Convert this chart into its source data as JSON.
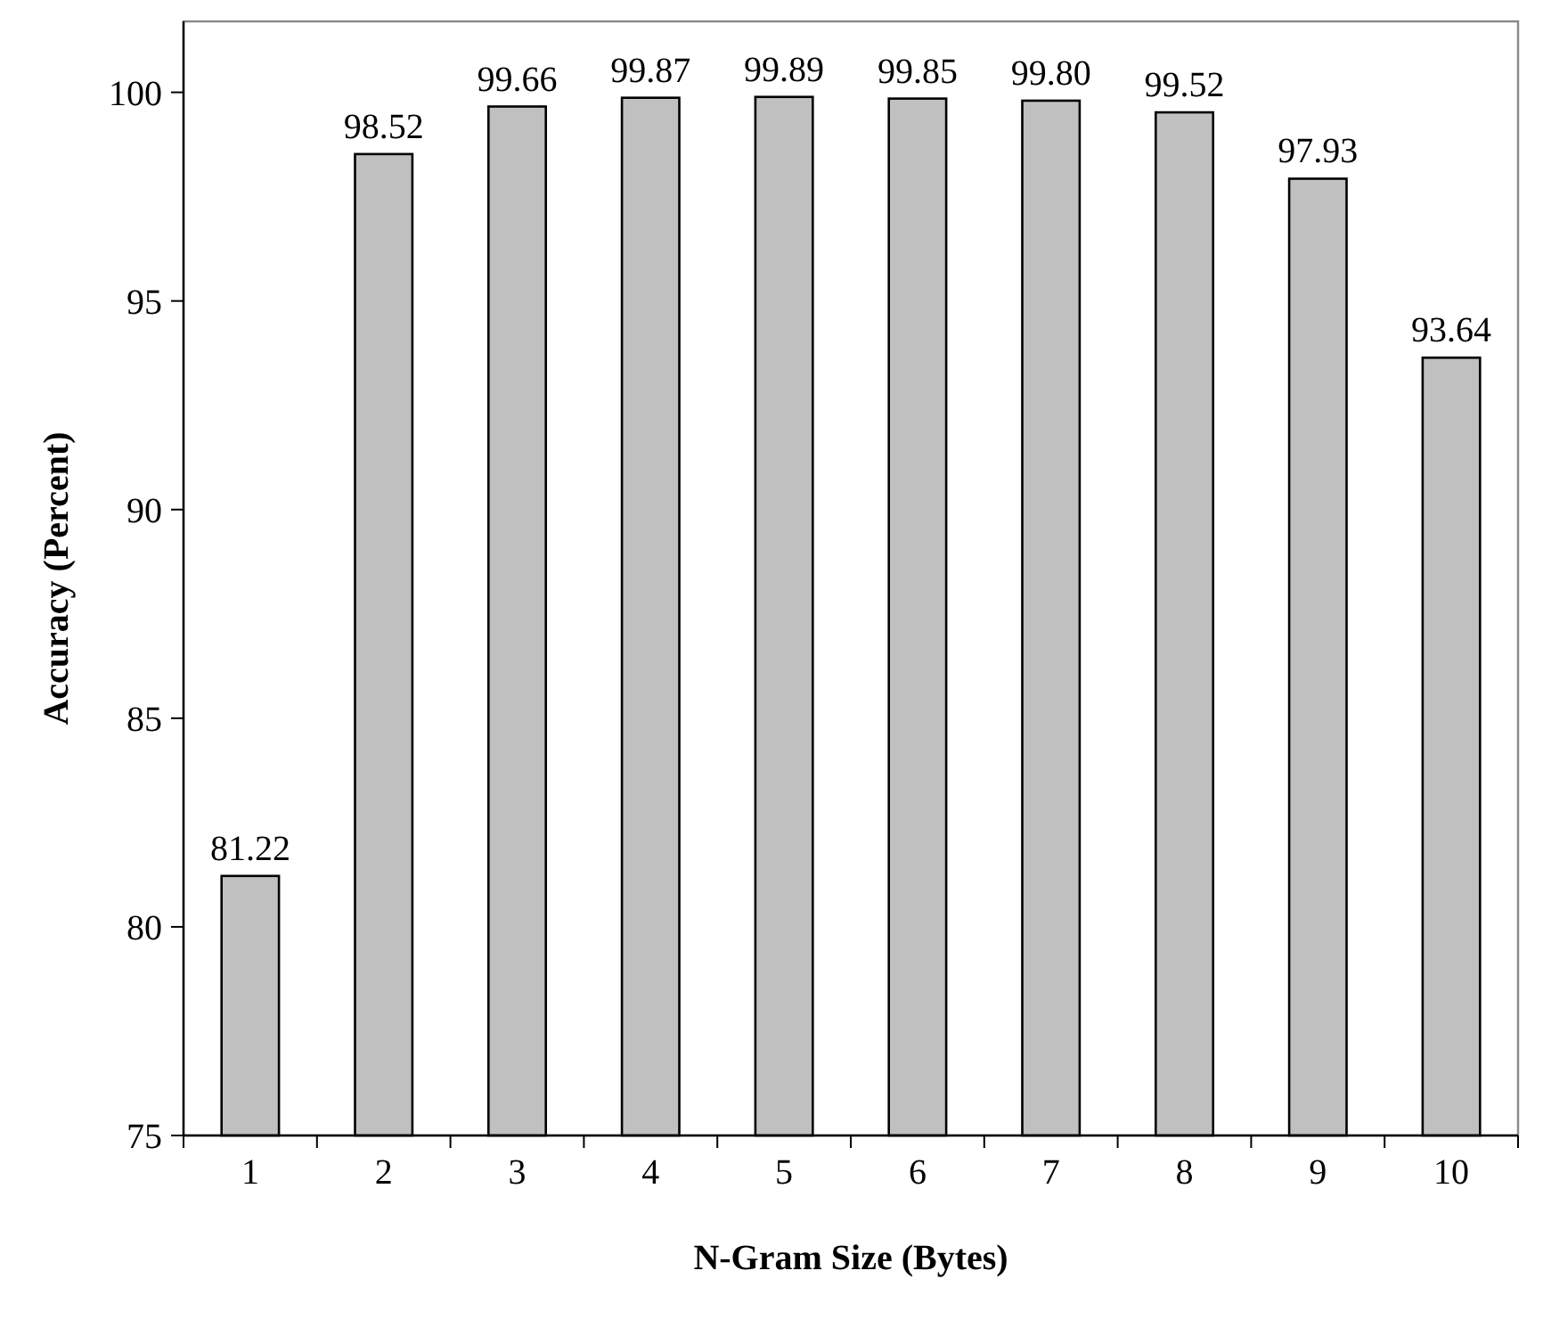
{
  "chart_data": {
    "type": "bar",
    "xlabel": "N-Gram Size (Bytes)",
    "ylabel": "Accuracy (Percent)",
    "categories": [
      "1",
      "2",
      "3",
      "4",
      "5",
      "6",
      "7",
      "8",
      "9",
      "10"
    ],
    "values": [
      81.22,
      98.52,
      99.66,
      99.87,
      99.89,
      99.85,
      99.8,
      99.52,
      97.93,
      93.64
    ],
    "value_labels": [
      "81.22",
      "98.52",
      "99.66",
      "99.87",
      "99.89",
      "99.85",
      "99.80",
      "99.52",
      "97.93",
      "93.64"
    ],
    "color": "#c0c0c0",
    "ylim": [
      75,
      101.7
    ],
    "yticks": [
      75,
      80,
      85,
      90,
      95,
      100
    ],
    "grid": false
  }
}
